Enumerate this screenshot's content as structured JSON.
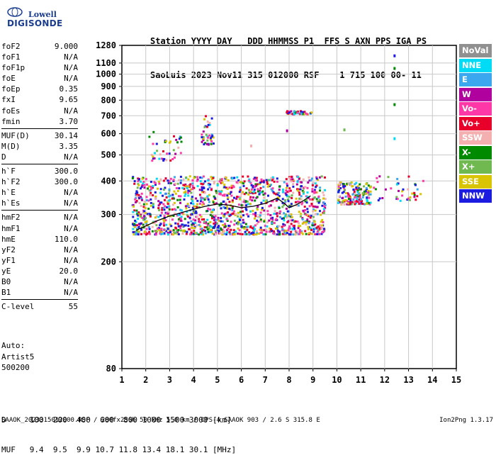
{
  "logo": {
    "line1": "Lowell",
    "line2": "DIGISONDE"
  },
  "header": {
    "line1": "Station YYYY DAY   DDD HHMMSS P1  FFS S AXN PPS IGA PS",
    "line2": "SaoLuis 2023 Nov11 315 012000 RSF    1 715 100 00- 11"
  },
  "params": [
    {
      "label": "foF2",
      "value": "9.000"
    },
    {
      "label": "foF1",
      "value": "N/A"
    },
    {
      "label": "foF1p",
      "value": "N/A"
    },
    {
      "label": "foE",
      "value": "N/A"
    },
    {
      "label": "foEp",
      "value": "0.35"
    },
    {
      "label": "fxI",
      "value": "9.65"
    },
    {
      "label": "foEs",
      "value": "N/A"
    },
    {
      "label": "fmin",
      "value": "3.70"
    },
    {
      "label": "MUF(D)",
      "value": "30.14"
    },
    {
      "label": "M(D)",
      "value": "3.35"
    },
    {
      "label": "D",
      "value": "N/A"
    },
    {
      "label": "h`F",
      "value": "300.0"
    },
    {
      "label": "h`F2",
      "value": "300.0"
    },
    {
      "label": "h`E",
      "value": "N/A"
    },
    {
      "label": "h`Es",
      "value": "N/A"
    },
    {
      "label": "hmF2",
      "value": "N/A"
    },
    {
      "label": "hmF1",
      "value": "N/A"
    },
    {
      "label": "hmE",
      "value": "110.0"
    },
    {
      "label": "yF2",
      "value": "N/A"
    },
    {
      "label": "yF1",
      "value": "N/A"
    },
    {
      "label": "yE",
      "value": "20.0"
    },
    {
      "label": "B0",
      "value": "N/A"
    },
    {
      "label": "B1",
      "value": "N/A"
    },
    {
      "label": "C-level",
      "value": "55"
    }
  ],
  "auto": [
    "Auto:",
    "Artist5",
    "500200"
  ],
  "distance_table": {
    "line1": "D     100  200  400  600  800 1000 1500 3000 [km]",
    "line2": "MUF   9.4  9.5  9.9 10.7 11.8 13.4 18.1 30.1 [MHz]"
  },
  "footer": {
    "left": "SAAOK_2023315012000.RSF / 280fx256h 50 kHz 5.0 km / DPS-4 SAAOK 903 / 2.6 S 315.8 E",
    "right": "Ion2Png 1.3.17"
  },
  "legend": [
    {
      "label": "NoVal",
      "color": "#909090"
    },
    {
      "label": "NNE",
      "color": "#00dcf5"
    },
    {
      "label": "E",
      "color": "#3aa7ef"
    },
    {
      "label": "W",
      "color": "#b0009e"
    },
    {
      "label": "Vo-",
      "color": "#ff38a8"
    },
    {
      "label": "Vo+",
      "color": "#e8002a"
    },
    {
      "label": "SSW",
      "color": "#f4b0b0"
    },
    {
      "label": "X-",
      "color": "#008a00"
    },
    {
      "label": "X+",
      "color": "#70b850"
    },
    {
      "label": "SSE",
      "color": "#d8c400"
    },
    {
      "label": "NNW",
      "color": "#1c1ce0"
    }
  ],
  "chart_data": {
    "type": "scatter",
    "title": "",
    "xlabel": "",
    "ylabel": "",
    "xlim": [
      1,
      15
    ],
    "ylim": [
      80,
      1280
    ],
    "y_scale": "log",
    "x_ticks": [
      1,
      2,
      3,
      4,
      5,
      6,
      7,
      8,
      9,
      10,
      11,
      12,
      13,
      14,
      15
    ],
    "y_ticks": [
      80,
      200,
      300,
      400,
      500,
      600,
      700,
      800,
      900,
      1000,
      1100,
      1280
    ],
    "grid": true,
    "trace": {
      "name": "",
      "x": [
        1.6,
        2.0,
        2.5,
        3.0,
        3.5,
        4.0,
        4.5,
        5.0,
        5.5,
        6.0,
        6.5,
        7.0,
        7.5,
        7.8,
        8.0,
        8.3,
        8.6,
        8.9
      ],
      "y": [
        262,
        272,
        285,
        296,
        305,
        314,
        322,
        328,
        325,
        318,
        322,
        330,
        345,
        330,
        318,
        326,
        338,
        352
      ]
    },
    "echo_regions": [
      {
        "f_min": 1.4,
        "f_max": 9.5,
        "h_min": 255,
        "h_max": 420,
        "density": "high",
        "colors": "mixed"
      },
      {
        "f_min": 10.0,
        "f_max": 11.4,
        "h_min": 330,
        "h_max": 400,
        "density": "medium",
        "colors": "mixed"
      },
      {
        "f_min": 11.5,
        "f_max": 13.6,
        "h_min": 340,
        "h_max": 420,
        "density": "low",
        "colors": "mixed"
      },
      {
        "f_min": 1.9,
        "f_max": 3.5,
        "h_min": 480,
        "h_max": 620,
        "density": "low",
        "colors": "mixed"
      },
      {
        "f_min": 4.3,
        "f_max": 4.8,
        "h_min": 550,
        "h_max": 710,
        "density": "low",
        "colors": "mixed"
      },
      {
        "f_min": 7.8,
        "f_max": 8.9,
        "h_min": 715,
        "h_max": 735,
        "density": "low",
        "colors": "mixed"
      }
    ],
    "isolated_points": [
      {
        "x": 12.4,
        "y": 1170,
        "mode": "NNW"
      },
      {
        "x": 12.4,
        "y": 1050,
        "mode": "X-"
      },
      {
        "x": 12.4,
        "y": 770,
        "mode": "X-"
      },
      {
        "x": 12.4,
        "y": 575,
        "mode": "NNE"
      },
      {
        "x": 10.3,
        "y": 620,
        "mode": "X+"
      },
      {
        "x": 7.9,
        "y": 615,
        "mode": "W"
      },
      {
        "x": 6.4,
        "y": 540,
        "mode": "SSW"
      }
    ]
  }
}
